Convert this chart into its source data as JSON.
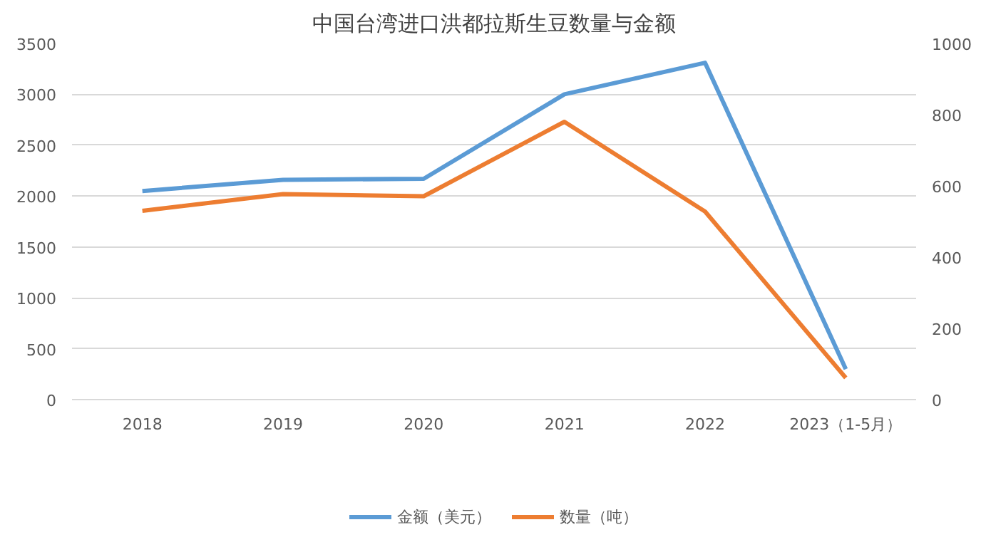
{
  "chart_data": {
    "type": "line",
    "title": "中国台湾进口洪都拉斯生豆数量与金额",
    "categories": [
      "2018",
      "2019",
      "2020",
      "2021",
      "2022",
      "2023（1-5月）"
    ],
    "series": [
      {
        "name": "金额（美元）",
        "color": "#5b9bd5",
        "values": [
          2050,
          2160,
          2170,
          3000,
          3310,
          300
        ]
      },
      {
        "name": "数量（吨）",
        "color": "#ed7d31",
        "values": [
          530,
          577,
          571,
          780,
          528,
          61
        ],
        "axis": "y2"
      }
    ],
    "ylim": [
      0,
      3500
    ],
    "yticks": [
      0,
      500,
      1000,
      1500,
      2000,
      2500,
      3000,
      3500
    ],
    "y2lim": [
      0,
      1000
    ],
    "y2ticks": [
      0,
      200,
      400,
      600,
      800,
      1000
    ],
    "grid": "y",
    "legend": "bottom",
    "marker": "none",
    "line_style": "solid"
  }
}
